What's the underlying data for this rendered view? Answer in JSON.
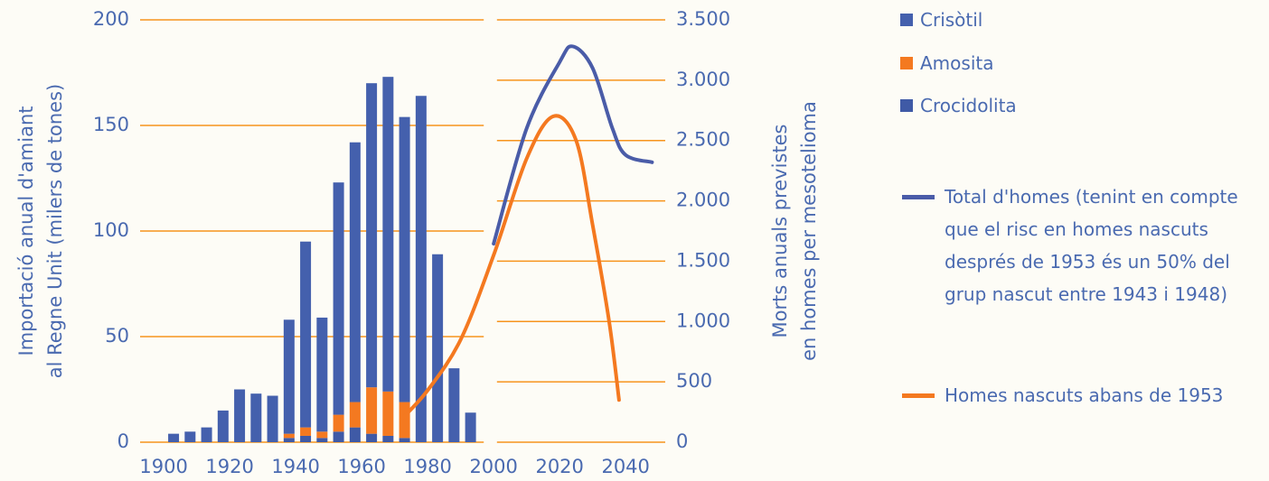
{
  "chart_data": {
    "type": "bar",
    "ylabel": [
      "Importació anual d'amiant",
      "al Regne Unit (milers de tones)"
    ],
    "y2label": [
      "Morts anuals previstes",
      "en homes per mesotelioma"
    ],
    "xlim": [
      1886,
      2052
    ],
    "xticks": [
      1900,
      1920,
      1940,
      1960,
      1980,
      2000,
      2020,
      2040
    ],
    "ylim": [
      0,
      200
    ],
    "yticks": [
      0,
      50,
      100,
      150,
      200
    ],
    "y2lim": [
      0,
      3500
    ],
    "y2ticks": [
      0,
      500,
      {
        "value": 1000,
        "label": "1.000"
      },
      {
        "value": 1500,
        "label": "1.500"
      },
      {
        "value": 2000,
        "label": "2.000"
      },
      {
        "value": 2500,
        "label": "2.500"
      },
      {
        "value": 3000,
        "label": "3.000"
      },
      {
        "value": 3500,
        "label": "3.500"
      }
    ],
    "grid": true,
    "grid_color": "#f7941d",
    "bar_x": [
      1903,
      1908,
      1913,
      1918,
      1923,
      1928,
      1933,
      1938,
      1943,
      1948,
      1953,
      1958,
      1963,
      1968,
      1973,
      1978,
      1983,
      1988,
      1993
    ],
    "series": [
      {
        "name": "Crocidolita",
        "type": "bar",
        "color": "#3f5aa6",
        "values": [
          0,
          0,
          0,
          0,
          0,
          0,
          0,
          2,
          3,
          2,
          5,
          7,
          4,
          3,
          2,
          0,
          0,
          0,
          0
        ]
      },
      {
        "name": "Amosita",
        "type": "bar",
        "color": "#f47920",
        "values": [
          0,
          0,
          0,
          0,
          0,
          0,
          0,
          2,
          4,
          3,
          8,
          12,
          22,
          21,
          17,
          0,
          0,
          0,
          0
        ]
      },
      {
        "name": "Crisòtil",
        "type": "bar",
        "color": "#4460ad",
        "values": [
          4,
          5,
          7,
          15,
          25,
          23,
          22,
          54,
          88,
          54,
          110,
          123,
          144,
          149,
          135,
          164,
          89,
          35,
          14
        ]
      },
      {
        "name": "Total d'homes (tenint en compte que el risc en homes nascuts després de 1953 és un 50% del grup nascut entre 1943 i 1948)",
        "type": "line",
        "axis": "y2",
        "color": "#4a5ca8",
        "x": [
          2000,
          2010,
          2020,
          2024,
          2030,
          2036,
          2040,
          2048
        ],
        "values": [
          1645,
          2600,
          3150,
          3280,
          3100,
          2600,
          2380,
          2320
        ]
      },
      {
        "name": "Homes nascuts abans de 1953",
        "type": "line",
        "axis": "y2",
        "color": "#f47920",
        "x": [
          1972,
          1980,
          1990,
          2000,
          2010,
          2018,
          2025,
          2030,
          2035,
          2038
        ],
        "values": [
          190,
          430,
          850,
          1550,
          2350,
          2700,
          2500,
          1800,
          1000,
          350
        ]
      }
    ],
    "legend_order": [
      2,
      1,
      0,
      3,
      4
    ]
  }
}
